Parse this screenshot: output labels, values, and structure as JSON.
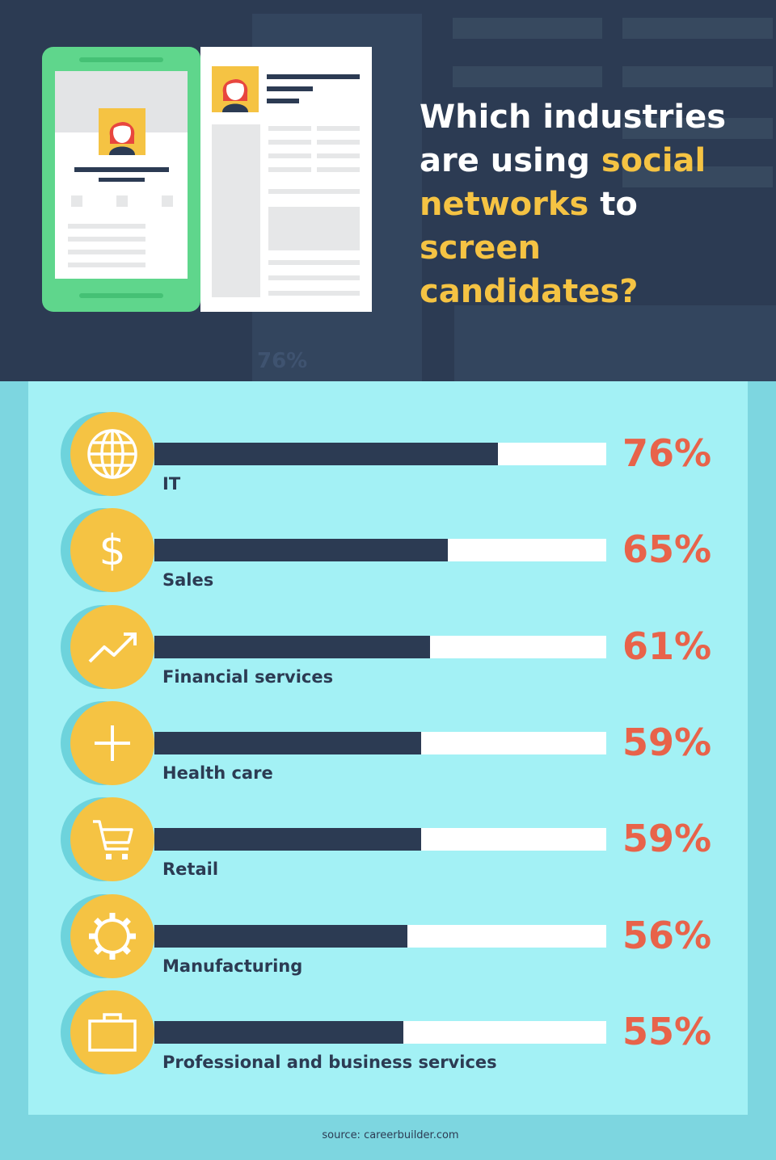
{
  "header": {
    "title_parts": [
      {
        "text": "Which industries are using ",
        "highlight": false
      },
      {
        "text": "social networks",
        "highlight": true
      },
      {
        "text": " to ",
        "highlight": false
      },
      {
        "text": "screen candidates?",
        "highlight": true
      }
    ],
    "ghost_value": "76%"
  },
  "colors": {
    "background_header": "#2c3b53",
    "panel": "#a3f1f5",
    "bar_fill": "#2c3b53",
    "bar_track": "#ffffff",
    "value_text": "#e8634a",
    "icon_circle": "#f5c343",
    "highlight_text": "#f5c343"
  },
  "chart_data": {
    "type": "bar",
    "orientation": "horizontal",
    "categories": [
      "IT",
      "Sales",
      "Financial services",
      "Health care",
      "Retail",
      "Manufacturing",
      "Professional and business services"
    ],
    "values": [
      76,
      65,
      61,
      59,
      59,
      56,
      55
    ],
    "value_labels": [
      "76%",
      "65%",
      "61%",
      "59%",
      "59%",
      "56%",
      "55%"
    ],
    "icons": [
      "globe-icon",
      "dollar-icon",
      "trend-up-icon",
      "plus-icon",
      "cart-icon",
      "gear-icon",
      "briefcase-icon"
    ],
    "xlim": [
      0,
      100
    ],
    "grid": false
  },
  "footer": {
    "source": "source: careerbuilder.com"
  }
}
